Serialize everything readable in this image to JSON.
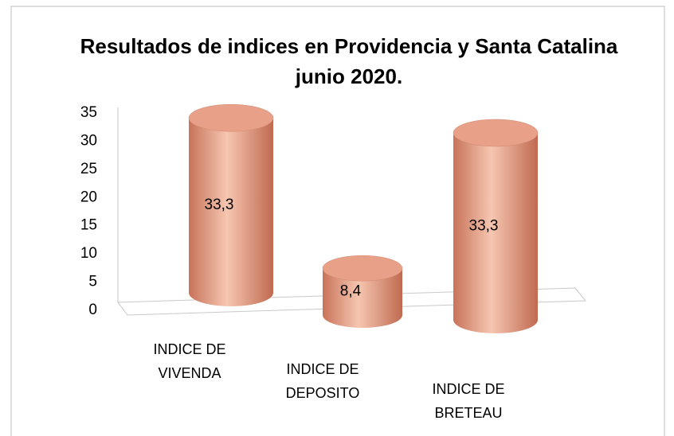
{
  "chart_data": {
    "type": "cylinder",
    "title": [
      "Resultados de indices en Providencia y Santa Catalina",
      "junio 2020."
    ],
    "categories": [
      [
        "INDICE DE",
        "VIVENDA"
      ],
      [
        "INDICE DE",
        "DEPOSITO"
      ],
      [
        "INDICE DE",
        "BRETEAU"
      ]
    ],
    "values": [
      33.3,
      8.4,
      33.3
    ],
    "value_labels": [
      "33,3",
      "8,4",
      "33,3"
    ],
    "color": "#e8a088",
    "ylim": [
      0,
      35
    ],
    "yticks": [
      0,
      5,
      10,
      15,
      20,
      25,
      30,
      35
    ],
    "grid": false
  }
}
